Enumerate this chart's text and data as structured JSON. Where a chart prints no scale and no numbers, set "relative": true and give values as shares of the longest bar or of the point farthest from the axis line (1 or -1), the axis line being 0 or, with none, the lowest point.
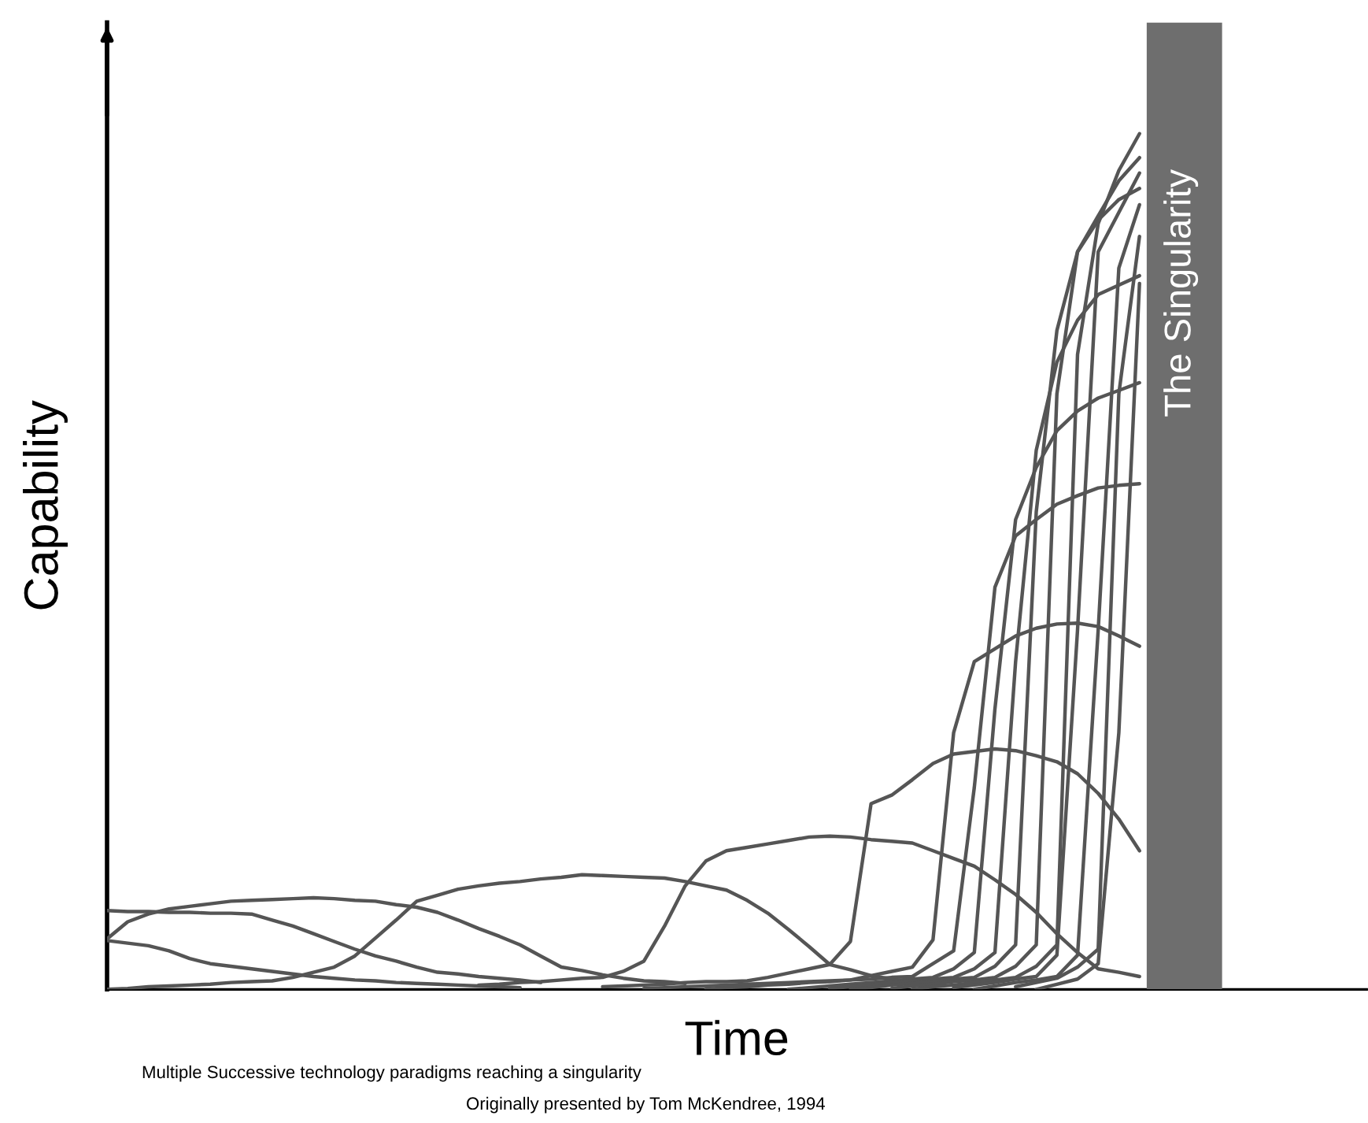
{
  "chart_data": {
    "type": "line",
    "relative": true,
    "xlabel": "Time",
    "ylabel": "Capability",
    "tick_labels": false,
    "marker": "none",
    "line_style": "solid",
    "categories": [
      null,
      null,
      null,
      null,
      null,
      null,
      null,
      null,
      null,
      null,
      null,
      null,
      null,
      null,
      null,
      null,
      null,
      null,
      null,
      null,
      null,
      null,
      null,
      null,
      null,
      null,
      null,
      null,
      null,
      null,
      null,
      null,
      null,
      null,
      null,
      null,
      null,
      null,
      null,
      null,
      null,
      null,
      null,
      null,
      null,
      null,
      null,
      null,
      null,
      null,
      null
    ],
    "annotations": [
      "Multiple Successive technology paradigms reaching a singularity",
      "Originally presented by Tom McKendree, 1994",
      "The Singularity"
    ],
    "series": [
      {
        "color": "#555555",
        "values": [
          0.092,
          0.091,
          0.091,
          0.09,
          0.09,
          0.089,
          0.089,
          0.088,
          0.081,
          0.074,
          0.065,
          0.056,
          0.047,
          0.039,
          0.033,
          0.026,
          0.02,
          0.018,
          0.015,
          0.013,
          0.011,
          0.008,
          null,
          null,
          null,
          null,
          null,
          null,
          null,
          null,
          null,
          null,
          null,
          null,
          null,
          null,
          null,
          null,
          null,
          null,
          null,
          null,
          null,
          null,
          null,
          null,
          null,
          null,
          null,
          null,
          null
        ]
      },
      {
        "color": "#555555",
        "values": [
          0.057,
          0.054,
          0.051,
          0.045,
          0.036,
          0.03,
          0.027,
          0.024,
          0.021,
          0.018,
          0.015,
          0.013,
          0.011,
          0.01,
          0.008,
          0.007,
          0.006,
          0.005,
          0.004,
          0.003,
          0.002,
          null,
          null,
          null,
          null,
          null,
          null,
          null,
          null,
          null,
          null,
          null,
          null,
          null,
          null,
          null,
          null,
          null,
          null,
          null,
          null,
          null,
          null,
          null,
          null,
          null,
          null,
          null,
          null,
          null,
          null
        ]
      },
      {
        "color": "#555555",
        "values": [
          0.059,
          0.079,
          0.088,
          0.094,
          0.097,
          0.1,
          0.103,
          0.104,
          0.105,
          0.106,
          0.107,
          0.106,
          0.104,
          0.103,
          0.099,
          0.096,
          0.09,
          0.081,
          0.071,
          0.062,
          0.052,
          0.039,
          0.026,
          0.022,
          0.017,
          0.013,
          0.01,
          0.009,
          0.007,
          null,
          null,
          null,
          null,
          null,
          null,
          null,
          null,
          null,
          null,
          null,
          null,
          null,
          null,
          null,
          null,
          null,
          null,
          null,
          null,
          null,
          null
        ]
      },
      {
        "color": "#555555",
        "values": [
          0,
          0.001,
          0.003,
          0.004,
          0.005,
          0.006,
          0.008,
          0.009,
          0.01,
          0.014,
          0.02,
          0.026,
          0.039,
          0.06,
          0.081,
          0.103,
          0.11,
          0.117,
          0.121,
          0.124,
          0.126,
          0.129,
          0.131,
          0.134,
          0.133,
          0.132,
          0.131,
          0.13,
          0.126,
          0.121,
          0.116,
          0.104,
          0.089,
          0.07,
          0.05,
          0.029,
          0.023,
          0.016,
          0.012,
          0.008,
          0.006,
          null,
          null,
          null,
          null,
          null,
          null,
          null,
          null,
          null,
          null
        ]
      },
      {
        "color": "#555555",
        "values": [
          null,
          null,
          null,
          null,
          null,
          null,
          null,
          null,
          null,
          null,
          null,
          null,
          null,
          null,
          null,
          null,
          null,
          null,
          0.005,
          0.006,
          0.008,
          0.009,
          0.011,
          0.013,
          0.014,
          0.021,
          0.033,
          0.074,
          0.121,
          0.15,
          0.162,
          0.166,
          0.17,
          0.174,
          0.178,
          0.179,
          0.178,
          0.175,
          0.173,
          0.171,
          0.162,
          0.153,
          0.144,
          0.128,
          0.111,
          0.09,
          0.065,
          0.043,
          0.024,
          0.02,
          0.015
        ]
      },
      {
        "color": "#555555",
        "values": [
          null,
          null,
          null,
          null,
          null,
          null,
          null,
          null,
          null,
          null,
          null,
          null,
          null,
          null,
          null,
          null,
          null,
          null,
          null,
          null,
          null,
          null,
          null,
          null,
          0.003,
          0.004,
          0.005,
          0.006,
          0.008,
          0.009,
          0.009,
          0.01,
          0.014,
          0.019,
          0.024,
          0.029,
          0.056,
          0.217,
          0.227,
          0.245,
          0.264,
          0.275,
          0.278,
          0.281,
          0.279,
          0.273,
          0.266,
          0.252,
          0.229,
          0.199,
          0.162
        ]
      },
      {
        "color": "#555555",
        "values": [
          null,
          null,
          null,
          null,
          null,
          null,
          null,
          null,
          null,
          null,
          null,
          null,
          null,
          null,
          null,
          null,
          null,
          null,
          null,
          null,
          null,
          null,
          null,
          null,
          null,
          null,
          0.001,
          0.002,
          0.003,
          0.004,
          0.005,
          0.006,
          0.007,
          0.008,
          0.009,
          0.01,
          0.011,
          0.016,
          0.021,
          0.026,
          0.058,
          0.3,
          0.383,
          0.398,
          0.413,
          0.422,
          0.427,
          0.428,
          0.424,
          0.413,
          0.401
        ]
      },
      {
        "color": "#555555",
        "values": [
          null,
          null,
          null,
          null,
          null,
          null,
          null,
          null,
          null,
          null,
          null,
          null,
          null,
          null,
          null,
          null,
          null,
          null,
          null,
          null,
          null,
          null,
          null,
          null,
          null,
          null,
          null,
          null,
          null,
          0,
          0.002,
          0.003,
          0.005,
          0.006,
          0.008,
          0.009,
          0.011,
          0.012,
          0.014,
          0.015,
          0.03,
          0.045,
          0.236,
          0.47,
          0.53,
          0.549,
          0.567,
          0.577,
          0.586,
          0.589,
          0.591
        ]
      },
      {
        "color": "#555555",
        "values": [
          null,
          null,
          null,
          null,
          null,
          null,
          null,
          null,
          null,
          null,
          null,
          null,
          null,
          null,
          null,
          null,
          null,
          null,
          null,
          null,
          null,
          null,
          null,
          null,
          null,
          null,
          null,
          null,
          null,
          null,
          null,
          null,
          null,
          0,
          0.002,
          0.004,
          0.006,
          0.008,
          0.01,
          0.012,
          0.014,
          0.024,
          0.043,
          0.328,
          0.549,
          0.61,
          0.653,
          0.676,
          0.691,
          0.7,
          0.709
        ]
      },
      {
        "color": "#555555",
        "values": [
          null,
          null,
          null,
          null,
          null,
          null,
          null,
          null,
          null,
          null,
          null,
          null,
          null,
          null,
          null,
          null,
          null,
          null,
          null,
          null,
          null,
          null,
          null,
          null,
          null,
          null,
          null,
          null,
          null,
          null,
          null,
          null,
          null,
          null,
          null,
          0.001,
          0.003,
          0.005,
          0.008,
          0.01,
          0.012,
          0.014,
          0.024,
          0.043,
          0.383,
          0.63,
          0.733,
          0.782,
          0.812,
          0.823,
          0.834
        ]
      },
      {
        "color": "#555555",
        "values": [
          null,
          null,
          null,
          null,
          null,
          null,
          null,
          null,
          null,
          null,
          null,
          null,
          null,
          null,
          null,
          null,
          null,
          null,
          null,
          null,
          null,
          null,
          null,
          null,
          null,
          null,
          null,
          null,
          null,
          null,
          null,
          null,
          null,
          null,
          null,
          null,
          0,
          0.002,
          0.005,
          0.007,
          0.009,
          0.012,
          0.014,
          0.027,
          0.052,
          0.558,
          0.77,
          0.862,
          0.899,
          0.923,
          0.936
        ]
      },
      {
        "color": "#555555",
        "values": [
          null,
          null,
          null,
          null,
          null,
          null,
          null,
          null,
          null,
          null,
          null,
          null,
          null,
          null,
          null,
          null,
          null,
          null,
          null,
          null,
          null,
          null,
          null,
          null,
          null,
          null,
          null,
          null,
          null,
          null,
          null,
          null,
          null,
          null,
          null,
          null,
          null,
          null,
          0.001,
          0.004,
          0.006,
          0.009,
          0.011,
          0.014,
          0.027,
          0.052,
          0.696,
          0.862,
          0.904,
          0.945,
          0.972
        ]
      },
      {
        "color": "#555555",
        "values": [
          null,
          null,
          null,
          null,
          null,
          null,
          null,
          null,
          null,
          null,
          null,
          null,
          null,
          null,
          null,
          null,
          null,
          null,
          null,
          null,
          null,
          null,
          null,
          null,
          null,
          null,
          null,
          null,
          null,
          null,
          null,
          null,
          null,
          null,
          null,
          null,
          null,
          null,
          null,
          0,
          0.003,
          0.005,
          0.008,
          0.011,
          0.014,
          0.027,
          0.052,
          0.742,
          0.895,
          0.957,
          1
        ]
      },
      {
        "color": "#555555",
        "values": [
          null,
          null,
          null,
          null,
          null,
          null,
          null,
          null,
          null,
          null,
          null,
          null,
          null,
          null,
          null,
          null,
          null,
          null,
          null,
          null,
          null,
          null,
          null,
          null,
          null,
          null,
          null,
          null,
          null,
          null,
          null,
          null,
          null,
          null,
          null,
          null,
          null,
          null,
          null,
          null,
          null,
          0.002,
          0.005,
          0.008,
          0.012,
          0.015,
          0.04,
          0.42,
          0.862,
          0.908,
          0.954
        ]
      },
      {
        "color": "#555555",
        "values": [
          null,
          null,
          null,
          null,
          null,
          null,
          null,
          null,
          null,
          null,
          null,
          null,
          null,
          null,
          null,
          null,
          null,
          null,
          null,
          null,
          null,
          null,
          null,
          null,
          null,
          null,
          null,
          null,
          null,
          null,
          null,
          null,
          null,
          null,
          null,
          null,
          null,
          null,
          null,
          null,
          null,
          null,
          0,
          0.004,
          0.008,
          0.011,
          0.015,
          0.04,
          0.42,
          0.843,
          0.917
        ]
      },
      {
        "color": "#555555",
        "values": [
          null,
          null,
          null,
          null,
          null,
          null,
          null,
          null,
          null,
          null,
          null,
          null,
          null,
          null,
          null,
          null,
          null,
          null,
          null,
          null,
          null,
          null,
          null,
          null,
          null,
          null,
          null,
          null,
          null,
          null,
          null,
          null,
          null,
          null,
          null,
          null,
          null,
          null,
          null,
          null,
          null,
          null,
          null,
          null,
          0.003,
          0.008,
          0.013,
          0.026,
          0.047,
          0.696,
          0.88
        ]
      },
      {
        "color": "#555555",
        "values": [
          null,
          null,
          null,
          null,
          null,
          null,
          null,
          null,
          null,
          null,
          null,
          null,
          null,
          null,
          null,
          null,
          null,
          null,
          null,
          null,
          null,
          null,
          null,
          null,
          null,
          null,
          null,
          null,
          null,
          null,
          null,
          null,
          null,
          null,
          null,
          null,
          null,
          null,
          null,
          null,
          null,
          null,
          null,
          null,
          null,
          0,
          0.006,
          0.012,
          0.03,
          0.3,
          0.825
        ]
      }
    ]
  }
}
